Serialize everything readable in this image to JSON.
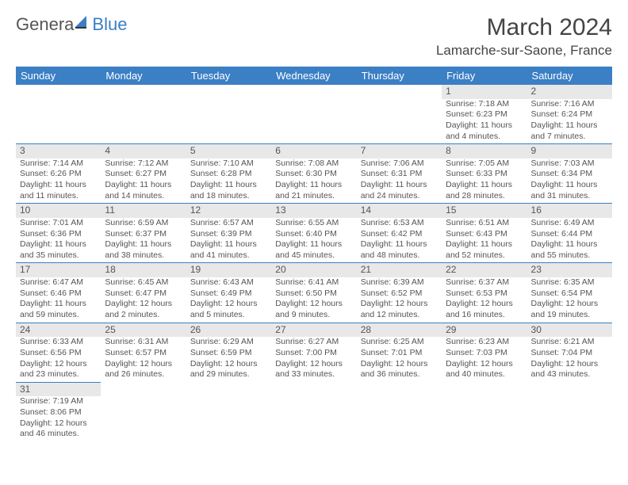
{
  "logo": {
    "text_a": "Genera",
    "text_b": "Blue"
  },
  "title": "March 2024",
  "location": "Lamarche-sur-Saone, France",
  "colors": {
    "header_bg": "#3b7fc4",
    "header_text": "#ffffff",
    "daynum_bg": "#e8e8e8",
    "border": "#3b7fc4",
    "text": "#555555",
    "page_bg": "#ffffff"
  },
  "weekdays": [
    "Sunday",
    "Monday",
    "Tuesday",
    "Wednesday",
    "Thursday",
    "Friday",
    "Saturday"
  ],
  "weeks": [
    [
      null,
      null,
      null,
      null,
      null,
      {
        "n": "1",
        "sr": "Sunrise: 7:18 AM",
        "ss": "Sunset: 6:23 PM",
        "d1": "Daylight: 11 hours",
        "d2": "and 4 minutes."
      },
      {
        "n": "2",
        "sr": "Sunrise: 7:16 AM",
        "ss": "Sunset: 6:24 PM",
        "d1": "Daylight: 11 hours",
        "d2": "and 7 minutes."
      }
    ],
    [
      {
        "n": "3",
        "sr": "Sunrise: 7:14 AM",
        "ss": "Sunset: 6:26 PM",
        "d1": "Daylight: 11 hours",
        "d2": "and 11 minutes."
      },
      {
        "n": "4",
        "sr": "Sunrise: 7:12 AM",
        "ss": "Sunset: 6:27 PM",
        "d1": "Daylight: 11 hours",
        "d2": "and 14 minutes."
      },
      {
        "n": "5",
        "sr": "Sunrise: 7:10 AM",
        "ss": "Sunset: 6:28 PM",
        "d1": "Daylight: 11 hours",
        "d2": "and 18 minutes."
      },
      {
        "n": "6",
        "sr": "Sunrise: 7:08 AM",
        "ss": "Sunset: 6:30 PM",
        "d1": "Daylight: 11 hours",
        "d2": "and 21 minutes."
      },
      {
        "n": "7",
        "sr": "Sunrise: 7:06 AM",
        "ss": "Sunset: 6:31 PM",
        "d1": "Daylight: 11 hours",
        "d2": "and 24 minutes."
      },
      {
        "n": "8",
        "sr": "Sunrise: 7:05 AM",
        "ss": "Sunset: 6:33 PM",
        "d1": "Daylight: 11 hours",
        "d2": "and 28 minutes."
      },
      {
        "n": "9",
        "sr": "Sunrise: 7:03 AM",
        "ss": "Sunset: 6:34 PM",
        "d1": "Daylight: 11 hours",
        "d2": "and 31 minutes."
      }
    ],
    [
      {
        "n": "10",
        "sr": "Sunrise: 7:01 AM",
        "ss": "Sunset: 6:36 PM",
        "d1": "Daylight: 11 hours",
        "d2": "and 35 minutes."
      },
      {
        "n": "11",
        "sr": "Sunrise: 6:59 AM",
        "ss": "Sunset: 6:37 PM",
        "d1": "Daylight: 11 hours",
        "d2": "and 38 minutes."
      },
      {
        "n": "12",
        "sr": "Sunrise: 6:57 AM",
        "ss": "Sunset: 6:39 PM",
        "d1": "Daylight: 11 hours",
        "d2": "and 41 minutes."
      },
      {
        "n": "13",
        "sr": "Sunrise: 6:55 AM",
        "ss": "Sunset: 6:40 PM",
        "d1": "Daylight: 11 hours",
        "d2": "and 45 minutes."
      },
      {
        "n": "14",
        "sr": "Sunrise: 6:53 AM",
        "ss": "Sunset: 6:42 PM",
        "d1": "Daylight: 11 hours",
        "d2": "and 48 minutes."
      },
      {
        "n": "15",
        "sr": "Sunrise: 6:51 AM",
        "ss": "Sunset: 6:43 PM",
        "d1": "Daylight: 11 hours",
        "d2": "and 52 minutes."
      },
      {
        "n": "16",
        "sr": "Sunrise: 6:49 AM",
        "ss": "Sunset: 6:44 PM",
        "d1": "Daylight: 11 hours",
        "d2": "and 55 minutes."
      }
    ],
    [
      {
        "n": "17",
        "sr": "Sunrise: 6:47 AM",
        "ss": "Sunset: 6:46 PM",
        "d1": "Daylight: 11 hours",
        "d2": "and 59 minutes."
      },
      {
        "n": "18",
        "sr": "Sunrise: 6:45 AM",
        "ss": "Sunset: 6:47 PM",
        "d1": "Daylight: 12 hours",
        "d2": "and 2 minutes."
      },
      {
        "n": "19",
        "sr": "Sunrise: 6:43 AM",
        "ss": "Sunset: 6:49 PM",
        "d1": "Daylight: 12 hours",
        "d2": "and 5 minutes."
      },
      {
        "n": "20",
        "sr": "Sunrise: 6:41 AM",
        "ss": "Sunset: 6:50 PM",
        "d1": "Daylight: 12 hours",
        "d2": "and 9 minutes."
      },
      {
        "n": "21",
        "sr": "Sunrise: 6:39 AM",
        "ss": "Sunset: 6:52 PM",
        "d1": "Daylight: 12 hours",
        "d2": "and 12 minutes."
      },
      {
        "n": "22",
        "sr": "Sunrise: 6:37 AM",
        "ss": "Sunset: 6:53 PM",
        "d1": "Daylight: 12 hours",
        "d2": "and 16 minutes."
      },
      {
        "n": "23",
        "sr": "Sunrise: 6:35 AM",
        "ss": "Sunset: 6:54 PM",
        "d1": "Daylight: 12 hours",
        "d2": "and 19 minutes."
      }
    ],
    [
      {
        "n": "24",
        "sr": "Sunrise: 6:33 AM",
        "ss": "Sunset: 6:56 PM",
        "d1": "Daylight: 12 hours",
        "d2": "and 23 minutes."
      },
      {
        "n": "25",
        "sr": "Sunrise: 6:31 AM",
        "ss": "Sunset: 6:57 PM",
        "d1": "Daylight: 12 hours",
        "d2": "and 26 minutes."
      },
      {
        "n": "26",
        "sr": "Sunrise: 6:29 AM",
        "ss": "Sunset: 6:59 PM",
        "d1": "Daylight: 12 hours",
        "d2": "and 29 minutes."
      },
      {
        "n": "27",
        "sr": "Sunrise: 6:27 AM",
        "ss": "Sunset: 7:00 PM",
        "d1": "Daylight: 12 hours",
        "d2": "and 33 minutes."
      },
      {
        "n": "28",
        "sr": "Sunrise: 6:25 AM",
        "ss": "Sunset: 7:01 PM",
        "d1": "Daylight: 12 hours",
        "d2": "and 36 minutes."
      },
      {
        "n": "29",
        "sr": "Sunrise: 6:23 AM",
        "ss": "Sunset: 7:03 PM",
        "d1": "Daylight: 12 hours",
        "d2": "and 40 minutes."
      },
      {
        "n": "30",
        "sr": "Sunrise: 6:21 AM",
        "ss": "Sunset: 7:04 PM",
        "d1": "Daylight: 12 hours",
        "d2": "and 43 minutes."
      }
    ],
    [
      {
        "n": "31",
        "sr": "Sunrise: 7:19 AM",
        "ss": "Sunset: 8:06 PM",
        "d1": "Daylight: 12 hours",
        "d2": "and 46 minutes."
      },
      null,
      null,
      null,
      null,
      null,
      null
    ]
  ]
}
